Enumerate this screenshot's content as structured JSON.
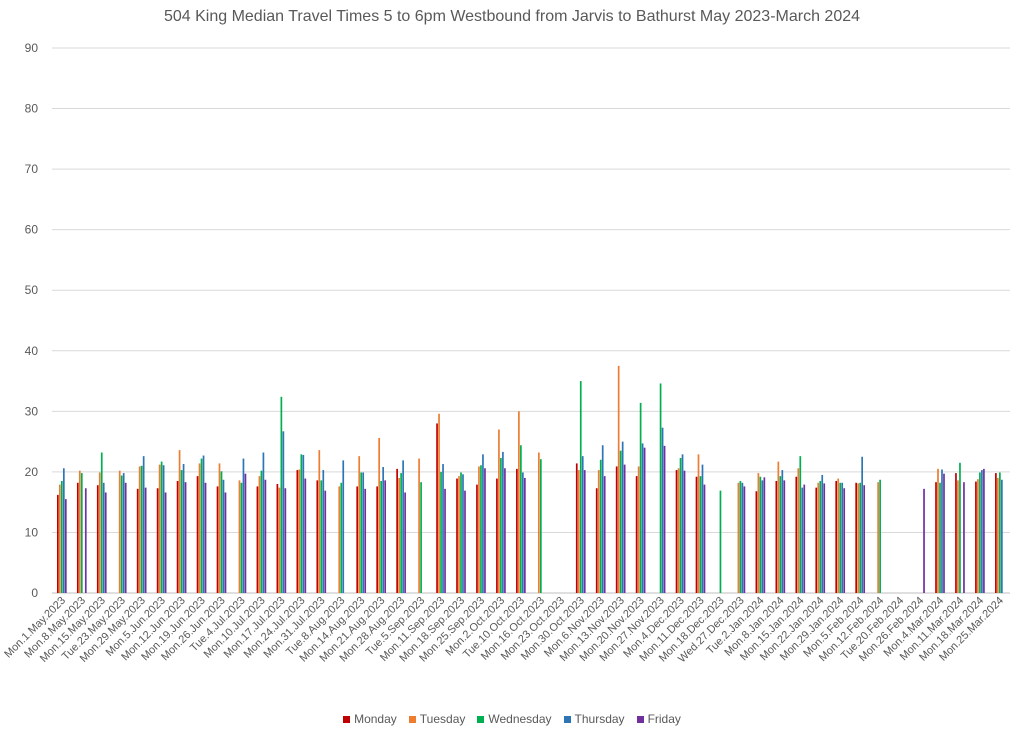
{
  "chart_data": {
    "type": "bar",
    "title": "504 King Median Travel Times 5 to 6pm Westbound from Jarvis to Bathurst May 2023-March 2024",
    "xlabel": "",
    "ylabel": "",
    "ylim": [
      0,
      90
    ],
    "yticks": [
      0,
      10,
      20,
      30,
      40,
      50,
      60,
      70,
      80,
      90
    ],
    "grid": true,
    "legend_position": "bottom",
    "categories": [
      "Mon.1.May.2023",
      "Mon.8.May.2023",
      "Mon.15.May.2023",
      "Tue.23.May.2023",
      "Mon.29.May.2023",
      "Mon.5.Jun.2023",
      "Mon.12.Jun.2023",
      "Mon.19.Jun.2023",
      "Mon.26.Jun.2023",
      "Tue.4.Jul.2023",
      "Mon.10.Jul.2023",
      "Mon.17.Jul.2023",
      "Mon.24.Jul.2023",
      "Mon.31.Jul.2023",
      "Tue.8.Aug.2023",
      "Mon.14.Aug.2023",
      "Mon.21.Aug.2023",
      "Mon.28.Aug.2023",
      "Tue.5.Sep.2023",
      "Mon.11.Sep.2023",
      "Mon.18.Sep.2023",
      "Mon.25.Sep.2023",
      "Mon.2.Oct.2023",
      "Tue.10.Oct.2023",
      "Mon.16.Oct.2023",
      "Mon.23.Oct.2023",
      "Mon.30.Oct.2023",
      "Mon.6.Nov.2023",
      "Mon.13.Nov.2023",
      "Mon.20.Nov.2023",
      "Mon.27.Nov.2023",
      "Mon.4.Dec.2023",
      "Mon.11.Dec.2023",
      "Mon.18.Dec.2023",
      "Wed.27.Dec.2023",
      "Tue.2.Jan.2024",
      "Mon.8.Jan.2024",
      "Mon.15.Jan.2024",
      "Mon.22.Jan.2024",
      "Mon.29.Jan.2024",
      "Mon.5.Feb.2024",
      "Mon.12.Feb.2024",
      "Tue.20.Feb.2024",
      "Mon.26.Feb.2024",
      "Mon.4.Mar.2024",
      "Mon.11.Mar.2024",
      "Mon.18.Mar.2024",
      "Mon.25.Mar.2024"
    ],
    "series": [
      {
        "name": "Monday",
        "color": "#c00000",
        "values": [
          16.2,
          18.2,
          17.8,
          null,
          17.2,
          17.3,
          18.5,
          19.3,
          17.6,
          null,
          17.6,
          18,
          20.3,
          18.6,
          null,
          17.6,
          17.6,
          20.5,
          null,
          28,
          18.9,
          17.9,
          18.9,
          20.5,
          null,
          null,
          21.4,
          17.3,
          20.9,
          19.3,
          null,
          20.3,
          19.2,
          null,
          null,
          16.8,
          18.5,
          19.2,
          17.4,
          18.5,
          18.2,
          null,
          null,
          null,
          18.3,
          19.8,
          18.4,
          19.8
        ]
      },
      {
        "name": "Tuesday",
        "color": "#ed7d31",
        "values": [
          17.9,
          20.2,
          19.9,
          20.2,
          20.9,
          21.2,
          23.6,
          21.4,
          21.4,
          18.6,
          19.3,
          17.4,
          20.4,
          23.6,
          17.6,
          22.6,
          25.6,
          19,
          22.2,
          29.6,
          19.3,
          20.9,
          27,
          30,
          23.2,
          null,
          20.3,
          20.3,
          37.5,
          20.9,
          null,
          20.6,
          22.9,
          null,
          18.2,
          19.8,
          21.7,
          20.6,
          18.2,
          18.9,
          18.1,
          18.3,
          null,
          null,
          20.5,
          18.6,
          18.8,
          19
        ]
      },
      {
        "name": "Wednesday",
        "color": "#00b050",
        "values": [
          18.5,
          19.8,
          23.2,
          19.4,
          21,
          21.7,
          20.3,
          22.2,
          20.1,
          18.2,
          20.2,
          32.4,
          22.9,
          18.6,
          18.2,
          19.9,
          18.5,
          19.8,
          18.3,
          20,
          19.9,
          21.1,
          22.3,
          24.4,
          22.1,
          null,
          35,
          22,
          23.5,
          31.4,
          34.6,
          22.3,
          19.3,
          16.9,
          18.5,
          19.2,
          19.3,
          22.6,
          18.5,
          18.2,
          18.2,
          18.7,
          null,
          null,
          18.2,
          21.5,
          19.9,
          19.9
        ]
      },
      {
        "name": "Thursday",
        "color": "#2e75b6",
        "values": [
          20.6,
          null,
          18.2,
          19.8,
          22.6,
          21.1,
          21.3,
          22.7,
          18.7,
          22.2,
          23.2,
          26.7,
          22.8,
          20.3,
          21.9,
          19.9,
          20.8,
          21.9,
          null,
          21.3,
          19.6,
          22.9,
          23.3,
          19.9,
          null,
          null,
          22.6,
          24.4,
          25,
          24.7,
          27.3,
          22.9,
          21.2,
          null,
          18.2,
          18.6,
          20.3,
          17.4,
          19.5,
          18.2,
          22.5,
          null,
          null,
          null,
          20.4,
          null,
          20.3,
          18.7
        ]
      },
      {
        "name": "Friday",
        "color": "#7030a0",
        "values": [
          15.5,
          17.3,
          16.6,
          18.2,
          17.4,
          16.6,
          18.3,
          18.2,
          16.6,
          19.7,
          18.7,
          17.3,
          18.9,
          16.9,
          null,
          17.2,
          18.6,
          16.6,
          null,
          17.2,
          16.9,
          20.6,
          20.6,
          19,
          null,
          null,
          20.3,
          19.3,
          21.2,
          24,
          24.3,
          20.2,
          17.9,
          null,
          17.6,
          19.1,
          18.6,
          17.9,
          18.1,
          17.3,
          17.8,
          null,
          null,
          17.2,
          19.7,
          18.3,
          20.5,
          null
        ]
      }
    ]
  }
}
